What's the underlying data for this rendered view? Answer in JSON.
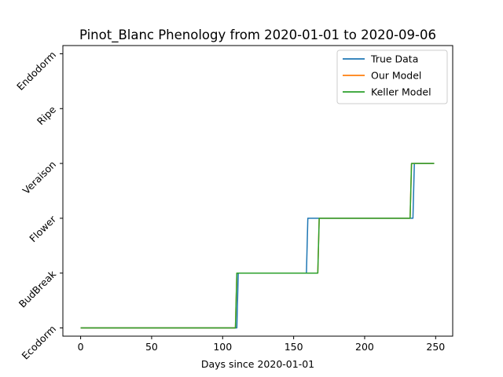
{
  "chart_data": {
    "type": "line",
    "title": "Pinot_Blanc Phenology from 2020-01-01 to 2020-09-06",
    "xlabel": "Days since 2020-01-01",
    "ylabel": "",
    "xlim": [
      -12.5,
      262
    ],
    "ylim": [
      -0.15,
      5.15
    ],
    "x_ticks": [
      0,
      50,
      100,
      150,
      200,
      250
    ],
    "y_ticks": [
      0,
      1,
      2,
      3,
      4,
      5
    ],
    "y_tick_labels": [
      "Ecodorm",
      "BudBreak",
      "Flower",
      "Veraison",
      "Ripe",
      "Endodorm"
    ],
    "grid": false,
    "legend_position": "top-right",
    "series": [
      {
        "name": "True Data",
        "color": "#1f77b4",
        "points": [
          [
            0,
            0
          ],
          [
            110,
            0
          ],
          [
            111,
            1
          ],
          [
            159,
            1
          ],
          [
            160,
            2
          ],
          [
            234,
            2
          ],
          [
            235,
            3
          ],
          [
            249,
            3
          ]
        ]
      },
      {
        "name": "Our Model",
        "color": "#ff7f0e",
        "points": [
          [
            0,
            0
          ],
          [
            109,
            0
          ],
          [
            110,
            1
          ],
          [
            167,
            1
          ],
          [
            168,
            2
          ],
          [
            232,
            2
          ],
          [
            233,
            3
          ],
          [
            249,
            3
          ]
        ]
      },
      {
        "name": "Keller Model",
        "color": "#2ca02c",
        "points": [
          [
            0,
            0
          ],
          [
            109,
            0
          ],
          [
            110,
            1
          ],
          [
            167,
            1
          ],
          [
            168,
            2
          ],
          [
            232,
            2
          ],
          [
            233,
            3
          ],
          [
            249,
            3
          ]
        ]
      }
    ]
  }
}
